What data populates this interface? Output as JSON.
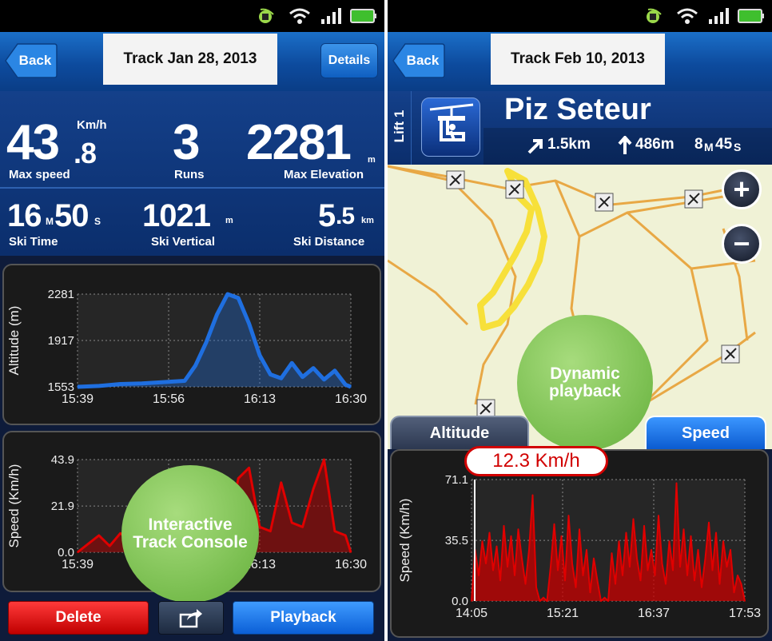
{
  "left": {
    "nav": {
      "back_label": "Back",
      "title": "Track Jan 28, 2013",
      "details_label": "Details"
    },
    "stats": {
      "max_speed": {
        "int": "43",
        "dec": ".8",
        "unit": "Km/h",
        "label": "Max speed"
      },
      "runs": {
        "value": "3",
        "label": "Runs"
      },
      "max_elevation": {
        "value": "2281",
        "unit": "m",
        "label": "Max Elevation"
      },
      "ski_time": {
        "min": "16",
        "min_unit": "M",
        "sec": "50",
        "sec_unit": "S",
        "label": "Ski Time"
      },
      "ski_vertical": {
        "value": "1021",
        "unit": "m",
        "label": "Ski Vertical"
      },
      "ski_distance": {
        "int": "5",
        "dec": ".5",
        "unit": "km",
        "label": "Ski Distance"
      }
    },
    "buttons": {
      "delete": "Delete",
      "playback": "Playback"
    },
    "badge": "Interactive Track Console"
  },
  "right": {
    "nav": {
      "back_label": "Back",
      "title": "Track Feb 10, 2013"
    },
    "lift": {
      "side_label": "Lift 1",
      "name": "Piz Seteur",
      "distance": "1.5km",
      "vertical": "486m",
      "duration_min": "8",
      "duration_min_unit": "M",
      "duration_sec": "45",
      "duration_sec_unit": "S"
    },
    "tabs": {
      "altitude": "Altitude",
      "speed": "Speed"
    },
    "speed_readout": "12.3  Km/h",
    "badge": "Dynamic playback"
  },
  "colors": {
    "altitude_line": "#1f6fe0",
    "speed_line": "#e00000",
    "badge": "#7cc052",
    "track": "#f7e03a"
  },
  "icons": [
    "satellite-icon",
    "wifi-icon",
    "signal-icon",
    "battery-icon",
    "chairlift-icon",
    "ski-run-icon",
    "zoom-in-icon",
    "zoom-out-icon",
    "share-icon"
  ],
  "chart_data": [
    {
      "type": "area",
      "ylabel": "Altitude (m)",
      "x_ticks": [
        "15:39",
        "15:56",
        "16:13",
        "16:30"
      ],
      "y_ticks": [
        1553,
        1917,
        2281
      ],
      "ylim": [
        1553,
        2281
      ],
      "x": [
        0,
        4,
        8,
        12,
        16,
        20,
        22,
        24,
        26,
        28,
        30,
        32,
        34,
        36,
        38,
        40,
        42,
        44,
        46,
        48,
        50,
        51
      ],
      "values": [
        1553,
        1560,
        1575,
        1580,
        1590,
        1600,
        1720,
        1900,
        2120,
        2281,
        2250,
        2050,
        1800,
        1650,
        1620,
        1740,
        1630,
        1700,
        1610,
        1680,
        1570,
        1553
      ],
      "grid": true
    },
    {
      "type": "area",
      "ylabel": "Speed (Km/h)",
      "x_ticks": [
        "15:39",
        "15:56",
        "16:13",
        "16:30"
      ],
      "y_ticks": [
        0.0,
        21.9,
        43.9
      ],
      "ylim": [
        0,
        43.9
      ],
      "x": [
        0,
        2,
        4,
        6,
        8,
        10,
        12,
        14,
        16,
        18,
        20,
        22,
        24,
        26,
        28,
        30,
        32,
        34,
        36,
        38,
        40,
        42,
        44,
        46,
        48,
        50,
        51
      ],
      "values": [
        0,
        4,
        8,
        3,
        9,
        5,
        10,
        6,
        11,
        8,
        12,
        30,
        38,
        10,
        9,
        35,
        40,
        12,
        10,
        33,
        14,
        12,
        30,
        43.9,
        10,
        8,
        0
      ],
      "grid": true
    },
    {
      "type": "area",
      "ylabel": "Speed (Km/h)",
      "x_ticks": [
        "14:05",
        "15:21",
        "16:37",
        "17:53"
      ],
      "y_ticks": [
        0.0,
        35.5,
        71.1
      ],
      "ylim": [
        0,
        71.1
      ],
      "x": [
        0,
        3,
        6,
        9,
        12,
        15,
        18,
        21,
        24,
        27,
        30,
        33,
        36,
        39,
        42,
        45,
        48,
        51,
        54,
        57,
        60,
        63,
        66,
        69,
        72,
        75,
        78,
        81,
        84,
        87,
        90,
        93,
        96,
        99,
        102,
        105,
        108,
        111,
        114,
        117,
        120,
        123,
        126,
        129,
        132,
        135,
        138,
        141,
        144,
        147,
        150,
        153,
        156,
        159,
        162,
        165,
        168,
        171,
        174,
        177,
        180,
        183,
        186,
        189,
        192,
        195,
        198,
        201,
        204,
        207,
        210,
        213,
        216,
        219,
        222,
        225,
        228
      ],
      "values": [
        0,
        30,
        15,
        35,
        22,
        40,
        18,
        32,
        12,
        44,
        20,
        38,
        15,
        42,
        25,
        10,
        30,
        62,
        8,
        0,
        2,
        0,
        20,
        45,
        18,
        38,
        12,
        50,
        22,
        8,
        42,
        15,
        30,
        5,
        25,
        12,
        0,
        2,
        0,
        28,
        10,
        35,
        15,
        40,
        20,
        48,
        25,
        12,
        44,
        18,
        30,
        15,
        50,
        22,
        10,
        35,
        18,
        69,
        20,
        42,
        15,
        38,
        12,
        30,
        8,
        25,
        46,
        18,
        40,
        10,
        35,
        20,
        30,
        5,
        15,
        10,
        0
      ],
      "grid": true
    }
  ]
}
